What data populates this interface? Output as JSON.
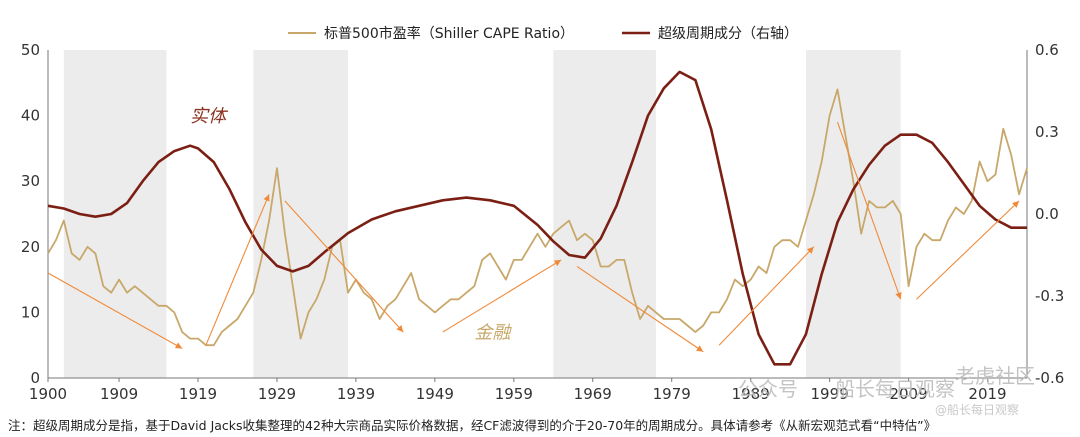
{
  "chart_data": {
    "type": "line",
    "title": "",
    "xlabel": "",
    "ylabel_left": "",
    "ylabel_right": "",
    "xlim": [
      1900,
      2024
    ],
    "ylim_left": [
      0,
      50
    ],
    "ylim_right": [
      -0.6,
      0.6
    ],
    "x_ticks": [
      "1900",
      "1909",
      "1919",
      "1929",
      "1939",
      "1949",
      "1959",
      "1969",
      "1979",
      "1989",
      "1999",
      "2009",
      "2019"
    ],
    "y_left_ticks": [
      "0",
      "10",
      "20",
      "30",
      "40",
      "50"
    ],
    "y_right_ticks": [
      "-0.6",
      "-0.3",
      "0.0",
      "0.3",
      "0.6"
    ],
    "legend_position": "top-center",
    "grid": false,
    "shaded_periods": [
      [
        1902,
        1915
      ],
      [
        1926,
        1938
      ],
      [
        1964,
        1977
      ],
      [
        1996,
        2008
      ]
    ],
    "series": [
      {
        "name": "标普500市盈率（Shiller CAPE Ratio）",
        "axis": "left",
        "color": "#c8a86a",
        "points": [
          [
            1900,
            19
          ],
          [
            1901,
            21
          ],
          [
            1902,
            24
          ],
          [
            1903,
            19
          ],
          [
            1904,
            18
          ],
          [
            1905,
            20
          ],
          [
            1906,
            19
          ],
          [
            1907,
            14
          ],
          [
            1908,
            13
          ],
          [
            1909,
            15
          ],
          [
            1910,
            13
          ],
          [
            1911,
            14
          ],
          [
            1912,
            13
          ],
          [
            1913,
            12
          ],
          [
            1914,
            11
          ],
          [
            1915,
            11
          ],
          [
            1916,
            10
          ],
          [
            1917,
            7
          ],
          [
            1918,
            6
          ],
          [
            1919,
            6
          ],
          [
            1920,
            5
          ],
          [
            1921,
            5
          ],
          [
            1922,
            7
          ],
          [
            1923,
            8
          ],
          [
            1924,
            9
          ],
          [
            1925,
            11
          ],
          [
            1926,
            13
          ],
          [
            1927,
            18
          ],
          [
            1928,
            24
          ],
          [
            1929,
            32
          ],
          [
            1930,
            22
          ],
          [
            1931,
            14
          ],
          [
            1932,
            6
          ],
          [
            1933,
            10
          ],
          [
            1934,
            12
          ],
          [
            1935,
            15
          ],
          [
            1936,
            20
          ],
          [
            1937,
            21
          ],
          [
            1938,
            13
          ],
          [
            1939,
            15
          ],
          [
            1940,
            13
          ],
          [
            1941,
            12
          ],
          [
            1942,
            9
          ],
          [
            1943,
            11
          ],
          [
            1944,
            12
          ],
          [
            1945,
            14
          ],
          [
            1946,
            16
          ],
          [
            1947,
            12
          ],
          [
            1948,
            11
          ],
          [
            1949,
            10
          ],
          [
            1950,
            11
          ],
          [
            1951,
            12
          ],
          [
            1952,
            12
          ],
          [
            1953,
            13
          ],
          [
            1954,
            14
          ],
          [
            1955,
            18
          ],
          [
            1956,
            19
          ],
          [
            1957,
            17
          ],
          [
            1958,
            15
          ],
          [
            1959,
            18
          ],
          [
            1960,
            18
          ],
          [
            1961,
            20
          ],
          [
            1962,
            22
          ],
          [
            1963,
            20
          ],
          [
            1964,
            22
          ],
          [
            1965,
            23
          ],
          [
            1966,
            24
          ],
          [
            1967,
            21
          ],
          [
            1968,
            22
          ],
          [
            1969,
            21
          ],
          [
            1970,
            17
          ],
          [
            1971,
            17
          ],
          [
            1972,
            18
          ],
          [
            1973,
            18
          ],
          [
            1974,
            13
          ],
          [
            1975,
            9
          ],
          [
            1976,
            11
          ],
          [
            1977,
            10
          ],
          [
            1978,
            9
          ],
          [
            1979,
            9
          ],
          [
            1980,
            9
          ],
          [
            1981,
            8
          ],
          [
            1982,
            7
          ],
          [
            1983,
            8
          ],
          [
            1984,
            10
          ],
          [
            1985,
            10
          ],
          [
            1986,
            12
          ],
          [
            1987,
            15
          ],
          [
            1988,
            14
          ],
          [
            1989,
            15
          ],
          [
            1990,
            17
          ],
          [
            1991,
            16
          ],
          [
            1992,
            20
          ],
          [
            1993,
            21
          ],
          [
            1994,
            21
          ],
          [
            1995,
            20
          ],
          [
            1996,
            24
          ],
          [
            1997,
            28
          ],
          [
            1998,
            33
          ],
          [
            1999,
            40
          ],
          [
            2000,
            44
          ],
          [
            2001,
            37
          ],
          [
            2002,
            30
          ],
          [
            2003,
            22
          ],
          [
            2004,
            27
          ],
          [
            2005,
            26
          ],
          [
            2006,
            26
          ],
          [
            2007,
            27
          ],
          [
            2008,
            25
          ],
          [
            2009,
            14
          ],
          [
            2010,
            20
          ],
          [
            2011,
            22
          ],
          [
            2012,
            21
          ],
          [
            2013,
            21
          ],
          [
            2014,
            24
          ],
          [
            2015,
            26
          ],
          [
            2016,
            25
          ],
          [
            2017,
            27
          ],
          [
            2018,
            33
          ],
          [
            2019,
            30
          ],
          [
            2020,
            31
          ],
          [
            2021,
            38
          ],
          [
            2022,
            34
          ],
          [
            2023,
            28
          ],
          [
            2024,
            32
          ]
        ]
      },
      {
        "name": "超级周期成分（右轴）",
        "axis": "right",
        "color": "#7b1f14",
        "points": [
          [
            1900,
            0.03
          ],
          [
            1902,
            0.02
          ],
          [
            1904,
            0.0
          ],
          [
            1906,
            -0.01
          ],
          [
            1908,
            0.0
          ],
          [
            1910,
            0.04
          ],
          [
            1912,
            0.12
          ],
          [
            1914,
            0.19
          ],
          [
            1916,
            0.23
          ],
          [
            1918,
            0.25
          ],
          [
            1919,
            0.24
          ],
          [
            1921,
            0.19
          ],
          [
            1923,
            0.09
          ],
          [
            1925,
            -0.03
          ],
          [
            1927,
            -0.13
          ],
          [
            1929,
            -0.19
          ],
          [
            1931,
            -0.21
          ],
          [
            1933,
            -0.19
          ],
          [
            1935,
            -0.14
          ],
          [
            1938,
            -0.07
          ],
          [
            1941,
            -0.02
          ],
          [
            1944,
            0.01
          ],
          [
            1947,
            0.03
          ],
          [
            1950,
            0.05
          ],
          [
            1953,
            0.06
          ],
          [
            1956,
            0.05
          ],
          [
            1959,
            0.03
          ],
          [
            1962,
            -0.04
          ],
          [
            1964,
            -0.1
          ],
          [
            1966,
            -0.15
          ],
          [
            1968,
            -0.16
          ],
          [
            1970,
            -0.09
          ],
          [
            1972,
            0.03
          ],
          [
            1974,
            0.19
          ],
          [
            1976,
            0.36
          ],
          [
            1978,
            0.46
          ],
          [
            1980,
            0.52
          ],
          [
            1982,
            0.49
          ],
          [
            1984,
            0.31
          ],
          [
            1986,
            0.05
          ],
          [
            1988,
            -0.22
          ],
          [
            1990,
            -0.44
          ],
          [
            1992,
            -0.55
          ],
          [
            1994,
            -0.55
          ],
          [
            1996,
            -0.44
          ],
          [
            1998,
            -0.22
          ],
          [
            2000,
            -0.03
          ],
          [
            2002,
            0.09
          ],
          [
            2004,
            0.18
          ],
          [
            2006,
            0.25
          ],
          [
            2008,
            0.29
          ],
          [
            2010,
            0.29
          ],
          [
            2012,
            0.26
          ],
          [
            2014,
            0.19
          ],
          [
            2016,
            0.11
          ],
          [
            2018,
            0.03
          ],
          [
            2020,
            -0.02
          ],
          [
            2022,
            -0.05
          ],
          [
            2024,
            -0.05
          ]
        ]
      }
    ],
    "arrows": [
      {
        "from": [
          1900,
          16
        ],
        "to": [
          1917,
          4.5
        ]
      },
      {
        "from": [
          1920,
          5
        ],
        "to": [
          1928,
          28
        ]
      },
      {
        "from": [
          1930,
          27
        ],
        "to": [
          1945,
          7
        ]
      },
      {
        "from": [
          1950,
          7
        ],
        "to": [
          1965,
          18
        ]
      },
      {
        "from": [
          1967,
          17
        ],
        "to": [
          1983,
          4
        ]
      },
      {
        "from": [
          1985,
          5
        ],
        "to": [
          1997,
          20
        ]
      },
      {
        "from": [
          2000,
          39
        ],
        "to": [
          2008,
          12
        ]
      },
      {
        "from": [
          2010,
          12
        ],
        "to": [
          2023,
          27
        ]
      }
    ],
    "arrow_color": "#f08a3a",
    "annotations": [
      {
        "text": "实体",
        "x": 1918,
        "y": 39,
        "color": "#8b3320"
      },
      {
        "text": "金融",
        "x": 1954,
        "y": 6,
        "color": "#c8a86a"
      }
    ]
  },
  "footnote": "注：超级周期成分是指，基于David Jacks收集整理的42种大宗商品实际价格数据，经CF滤波得到的介于20-70年的周期成分。具体请参考《从新宏观范式看“中特估”》",
  "watermark": {
    "text_1": "公众号",
    "text_2": "船长每日观察",
    "text_3": "老虎社区",
    "text_4": "@船长每日观察"
  }
}
